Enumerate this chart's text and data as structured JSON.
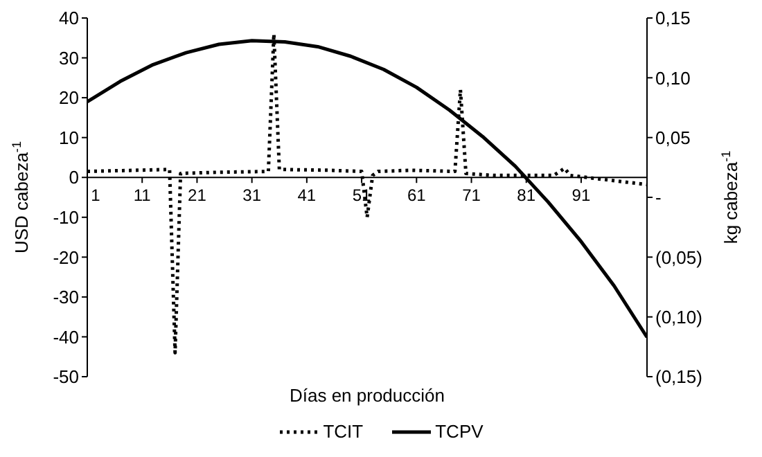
{
  "chart_data": {
    "type": "line",
    "xlabel": "Días en producción",
    "ylabel": "USD cabeza$^{-1}$",
    "y2label": "kg cabeza$^{-1}$",
    "xlim": [
      1,
      103
    ],
    "xticks": [
      1,
      11,
      21,
      31,
      41,
      51,
      61,
      71,
      81,
      91
    ],
    "ylim": [
      -50,
      40
    ],
    "yticks": [
      -50,
      -40,
      -30,
      -20,
      -10,
      0,
      10,
      20,
      30,
      40
    ],
    "y2lim": [
      -0.15,
      0.15
    ],
    "y2ticks": [
      {
        "value": 0.15,
        "label": "0,15"
      },
      {
        "value": 0.1,
        "label": "0,10"
      },
      {
        "value": 0.05,
        "label": "0,05"
      },
      {
        "value": 0,
        "label": "-"
      },
      {
        "value": -0.05,
        "label": "(0,05)"
      },
      {
        "value": -0.1,
        "label": "(0,10)"
      },
      {
        "value": -0.15,
        "label": "(0,15)"
      }
    ],
    "legend": "bottom",
    "series": [
      {
        "name": "TCIT",
        "color": "#000000",
        "line_style": "dotted",
        "x": [
          1,
          10,
          16,
          17,
          18,
          25,
          34,
          35,
          36,
          45,
          51,
          52,
          53,
          54,
          60,
          68,
          69,
          70,
          75,
          86,
          88,
          89,
          95,
          103
        ],
        "values": [
          1.5,
          1.8,
          2,
          -44,
          1,
          1.3,
          1.5,
          36,
          2,
          1.8,
          1.5,
          -10,
          0.5,
          1.5,
          1.8,
          1.5,
          22,
          1,
          0.5,
          0.5,
          2.3,
          0.5,
          -0.5,
          -1.8
        ]
      },
      {
        "name": "TCPV",
        "color": "#000000",
        "line_style": "solid",
        "axis": "y2",
        "x": [
          1,
          7,
          13,
          19,
          25,
          31,
          37,
          43,
          49,
          55,
          61,
          67,
          73,
          79,
          85,
          91,
          97,
          103
        ],
        "values": [
          0.08,
          0.097,
          0.111,
          0.121,
          0.128,
          0.131,
          0.13,
          0.126,
          0.118,
          0.107,
          0.092,
          0.073,
          0.051,
          0.026,
          -0.004,
          -0.037,
          -0.074,
          -0.117
        ]
      }
    ]
  }
}
